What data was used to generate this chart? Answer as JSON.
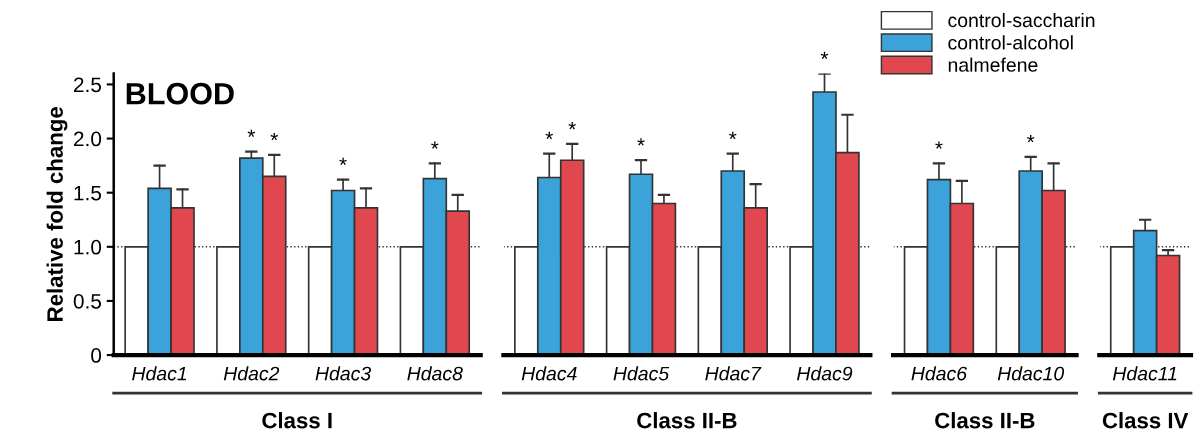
{
  "chart_data": [
    {
      "type": "bar",
      "title": "BLOOD",
      "ylabel": "Relative fold change",
      "xlabel": "Class I",
      "categories": [
        "Hdac1",
        "Hdac2",
        "Hdac3",
        "Hdac8"
      ],
      "ylim": [
        0,
        2.6
      ],
      "yticks": [
        0,
        0.5,
        {
          "value": 1.0,
          "label": "1.0"
        },
        1.5,
        {
          "value": 2.0,
          "label": "2.0"
        },
        2.5
      ],
      "legend": "top right",
      "ref_lines": [
        {
          "axis": "y",
          "value": 1.0,
          "line_style": "dotted",
          "color": "#333333"
        }
      ],
      "series": [
        {
          "name": "control-saccharin",
          "color": "#ffffff",
          "values": [
            1,
            1,
            1,
            1
          ]
        },
        {
          "name": "control-alcohol",
          "color": "#3ba3d9",
          "values": [
            1.54,
            1.82,
            1.52,
            1.63
          ],
          "errors": [
            [
              1.54,
              1.75
            ],
            [
              1.82,
              1.88
            ],
            [
              1.52,
              1.62
            ],
            [
              1.63,
              1.77
            ]
          ],
          "value_labels": [
            null,
            "*",
            "*",
            "*"
          ]
        },
        {
          "name": "nalmefene",
          "color": "#e0474f",
          "values": [
            1.36,
            1.65,
            1.36,
            1.33
          ],
          "errors": [
            [
              1.36,
              1.53
            ],
            [
              1.65,
              1.85
            ],
            [
              1.36,
              1.54
            ],
            [
              1.33,
              1.48
            ]
          ],
          "value_labels": [
            null,
            "*",
            null,
            null
          ]
        }
      ]
    },
    {
      "type": "bar",
      "xlabel": "Class II-B",
      "categories": [
        "Hdac4",
        "Hdac5",
        "Hdac7",
        "Hdac9"
      ],
      "ylim": [
        0,
        2.6
      ],
      "tick_labels": "x",
      "ref_lines": [
        {
          "axis": "y",
          "value": 1.0,
          "line_style": "dotted",
          "color": "#333333"
        }
      ],
      "series": [
        {
          "color": "#ffffff",
          "values": [
            1,
            1,
            1,
            1
          ]
        },
        {
          "color": "#3ba3d9",
          "values": [
            1.64,
            1.67,
            1.7,
            2.43
          ],
          "errors": [
            [
              1.64,
              1.86
            ],
            [
              1.67,
              1.8
            ],
            [
              1.7,
              1.86
            ],
            [
              2.43,
              2.6
            ]
          ],
          "value_labels": [
            "*",
            "*",
            "*",
            "*"
          ]
        },
        {
          "color": "#e0474f",
          "values": [
            1.8,
            1.4,
            1.36,
            1.87
          ],
          "errors": [
            [
              1.8,
              1.95
            ],
            [
              1.4,
              1.48
            ],
            [
              1.36,
              1.58
            ],
            [
              1.87,
              2.22
            ]
          ],
          "value_labels": [
            "*",
            null,
            null,
            null
          ]
        }
      ]
    },
    {
      "type": "bar",
      "xlabel": "Class II-B",
      "categories": [
        "Hdac6",
        "Hdac10"
      ],
      "ylim": [
        0,
        2.6
      ],
      "tick_labels": "x",
      "ref_lines": [
        {
          "axis": "y",
          "value": 1.0,
          "line_style": "dotted",
          "color": "#333333"
        }
      ],
      "series": [
        {
          "color": "#ffffff",
          "values": [
            1,
            1
          ]
        },
        {
          "color": "#3ba3d9",
          "values": [
            1.62,
            1.7
          ],
          "errors": [
            [
              1.62,
              1.77
            ],
            [
              1.7,
              1.83
            ]
          ],
          "value_labels": [
            "*",
            "*"
          ]
        },
        {
          "color": "#e0474f",
          "values": [
            1.4,
            1.52
          ],
          "errors": [
            [
              1.4,
              1.61
            ],
            [
              1.52,
              1.77
            ]
          ],
          "value_labels": [
            null,
            null
          ]
        }
      ]
    },
    {
      "type": "bar",
      "xlabel": "Class IV",
      "categories": [
        "Hdac11"
      ],
      "ylim": [
        0,
        2.6
      ],
      "tick_labels": "x",
      "ref_lines": [
        {
          "axis": "y",
          "value": 1.0,
          "line_style": "dotted",
          "color": "#333333"
        }
      ],
      "series": [
        {
          "color": "#ffffff",
          "values": [
            1
          ]
        },
        {
          "color": "#3ba3d9",
          "values": [
            1.15
          ],
          "errors": [
            [
              1.15,
              1.25
            ]
          ]
        },
        {
          "color": "#e0474f",
          "values": [
            0.92
          ],
          "errors": [
            [
              0.92,
              0.97
            ]
          ]
        }
      ]
    }
  ]
}
